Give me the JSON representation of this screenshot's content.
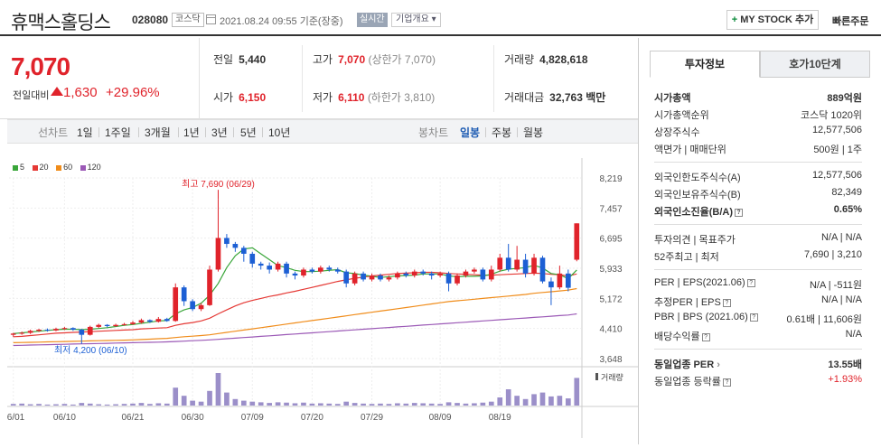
{
  "header": {
    "name": "휴맥스홀딩스",
    "code": "028080",
    "market": "코스닥",
    "datetime": "2021.08.24 09:55 기준(장중)",
    "realtime": "실시간",
    "overview": "기업개요 ▾",
    "mystock": "MY STOCK 추가",
    "quick_order": "빠른주문"
  },
  "summary": {
    "price": "7,070",
    "change_label": "전일대비",
    "change": "1,630",
    "change_pct": "+29.96%",
    "prev_label": "전일",
    "prev": "5,440",
    "high_label": "고가",
    "high": "7,070",
    "high_sub": "(상한가 7,070)",
    "volume_label": "거래량",
    "volume": "4,828,618",
    "open_label": "시가",
    "open": "6,150",
    "low_label": "저가",
    "low": "6,110",
    "low_sub": "(하한가 3,810)",
    "amount_label": "거래대금",
    "amount": "32,763",
    "amount_unit": "백만"
  },
  "periods": {
    "label": "선차트",
    "items": [
      "1일",
      "1주일",
      "3개월",
      "1년",
      "3년",
      "5년",
      "10년"
    ],
    "candle_label": "봉차트",
    "candle_items": [
      "일봉",
      "주봉",
      "월봉"
    ],
    "active": "일봉"
  },
  "colors": {
    "up": "#e0232b",
    "down": "#1c5fd4",
    "ma5": "#3aa63a",
    "ma20": "#e53935",
    "ma60": "#f08c1a",
    "ma120": "#9b59b6"
  },
  "chart_data": {
    "type": "candlestick",
    "legend": [
      "5",
      "20",
      "60",
      "120"
    ],
    "y_ticks": [
      "8,219",
      "7,457",
      "6,695",
      "5,933",
      "5,172",
      "4,410",
      "3,648"
    ],
    "ylim": [
      3648,
      8219
    ],
    "x_ticks": [
      "06/01",
      "06/10",
      "06/21",
      "06/30",
      "07/09",
      "07/20",
      "07/29",
      "08/09",
      "08/19"
    ],
    "annotation_high": "최고 7,690 (06/29)",
    "annotation_low": "최저 4,200 (06/10)",
    "volume_label": "거래량",
    "candles": [
      [
        4250,
        4280,
        4200,
        4300
      ],
      [
        4280,
        4300,
        4250,
        4330
      ],
      [
        4300,
        4350,
        4270,
        4380
      ],
      [
        4350,
        4380,
        4320,
        4400
      ],
      [
        4380,
        4360,
        4330,
        4410
      ],
      [
        4360,
        4400,
        4340,
        4430
      ],
      [
        4400,
        4420,
        4370,
        4450
      ],
      [
        4420,
        4380,
        4350,
        4440
      ],
      [
        4380,
        4250,
        4200,
        4400
      ],
      [
        4250,
        4450,
        4230,
        4480
      ],
      [
        4450,
        4500,
        4420,
        4530
      ],
      [
        4500,
        4470,
        4440,
        4520
      ],
      [
        4470,
        4500,
        4450,
        4530
      ],
      [
        4500,
        4520,
        4480,
        4550
      ],
      [
        4520,
        4560,
        4500,
        4600
      ],
      [
        4560,
        4620,
        4530,
        4660
      ],
      [
        4620,
        4580,
        4550,
        4640
      ],
      [
        4580,
        4650,
        4560,
        4700
      ],
      [
        4650,
        4600,
        4580,
        4680
      ],
      [
        4600,
        5450,
        4580,
        5550
      ],
      [
        5450,
        5100,
        4980,
        5500
      ],
      [
        5100,
        4900,
        4850,
        5150
      ],
      [
        4900,
        5000,
        4850,
        5050
      ],
      [
        5000,
        5900,
        4980,
        6000
      ],
      [
        5900,
        6700,
        5850,
        7690
      ],
      [
        6700,
        6550,
        6450,
        6800
      ],
      [
        6550,
        6450,
        6350,
        6600
      ],
      [
        6450,
        6300,
        6100,
        6500
      ],
      [
        6300,
        6050,
        5950,
        6350
      ],
      [
        6050,
        6000,
        5900,
        6100
      ],
      [
        6000,
        5900,
        5800,
        6080
      ],
      [
        5900,
        6050,
        5850,
        6100
      ],
      [
        6050,
        5800,
        5700,
        6100
      ],
      [
        5800,
        5750,
        5650,
        5850
      ],
      [
        5750,
        5900,
        5700,
        5950
      ],
      [
        5900,
        5850,
        5800,
        5950
      ],
      [
        5850,
        5950,
        5800,
        6000
      ],
      [
        5950,
        5900,
        5850,
        6000
      ],
      [
        5900,
        5850,
        5800,
        5950
      ],
      [
        5850,
        5550,
        5450,
        5900
      ],
      [
        5550,
        5800,
        5500,
        5850
      ],
      [
        5800,
        5650,
        5600,
        5850
      ],
      [
        5650,
        5750,
        5600,
        5800
      ],
      [
        5750,
        5650,
        5600,
        5800
      ],
      [
        5650,
        5700,
        5600,
        5750
      ],
      [
        5700,
        5800,
        5650,
        5850
      ],
      [
        5800,
        5750,
        5700,
        5850
      ],
      [
        5750,
        5850,
        5700,
        5900
      ],
      [
        5850,
        5800,
        5750,
        5900
      ],
      [
        5800,
        5750,
        5650,
        5850
      ],
      [
        5750,
        5800,
        5700,
        5850
      ],
      [
        5800,
        5550,
        5350,
        5850
      ],
      [
        5550,
        5750,
        5500,
        5800
      ],
      [
        5750,
        5850,
        5700,
        5900
      ],
      [
        5850,
        5900,
        5800,
        5950
      ],
      [
        5900,
        5650,
        5600,
        5950
      ],
      [
        5650,
        5900,
        5600,
        6000
      ],
      [
        5900,
        6200,
        5850,
        6300
      ],
      [
        6200,
        5900,
        5850,
        6550
      ],
      [
        5900,
        6150,
        5850,
        6500
      ],
      [
        6150,
        5800,
        5700,
        6300
      ],
      [
        5800,
        6200,
        5750,
        6300
      ],
      [
        6200,
        5600,
        5550,
        6250
      ],
      [
        5600,
        5450,
        5000,
        5700
      ],
      [
        5450,
        5800,
        5400,
        6000
      ],
      [
        5800,
        5440,
        5350,
        5900
      ],
      [
        6150,
        7070,
        6110,
        7070
      ]
    ],
    "ma5": [
      4280,
      4300,
      4320,
      4340,
      4360,
      4380,
      4390,
      4390,
      4380,
      4390,
      4410,
      4430,
      4460,
      4490,
      4510,
      4540,
      4570,
      4600,
      4610,
      4780,
      4880,
      4940,
      5050,
      5250,
      5550,
      5950,
      6250,
      6420,
      6450,
      6300,
      6150,
      6000,
      5950,
      5880,
      5850,
      5850,
      5860,
      5880,
      5900,
      5820,
      5800,
      5760,
      5730,
      5700,
      5720,
      5740,
      5750,
      5760,
      5790,
      5790,
      5790,
      5740,
      5720,
      5730,
      5730,
      5740,
      5780,
      5860,
      5910,
      5930,
      5950,
      6010,
      5940,
      5800,
      5770,
      5670,
      5890
    ],
    "ma20": [
      4200,
      4210,
      4230,
      4250,
      4270,
      4290,
      4300,
      4310,
      4320,
      4330,
      4340,
      4350,
      4360,
      4370,
      4380,
      4400,
      4410,
      4420,
      4430,
      4490,
      4530,
      4560,
      4600,
      4670,
      4780,
      4880,
      4980,
      5060,
      5120,
      5170,
      5220,
      5260,
      5310,
      5350,
      5400,
      5450,
      5500,
      5550,
      5600,
      5640,
      5680,
      5710,
      5740,
      5760,
      5780,
      5800,
      5810,
      5820,
      5830,
      5830,
      5820,
      5800,
      5790,
      5780,
      5770,
      5760,
      5760,
      5770,
      5780,
      5790,
      5800,
      5810,
      5800,
      5780,
      5770,
      5740,
      5790
    ],
    "ma60": [
      4050,
      4055,
      4060,
      4065,
      4070,
      4075,
      4080,
      4085,
      4090,
      4095,
      4100,
      4105,
      4110,
      4115,
      4120,
      4130,
      4140,
      4150,
      4160,
      4180,
      4200,
      4215,
      4230,
      4250,
      4280,
      4310,
      4340,
      4370,
      4400,
      4430,
      4460,
      4490,
      4520,
      4550,
      4580,
      4610,
      4640,
      4670,
      4700,
      4730,
      4760,
      4790,
      4820,
      4850,
      4880,
      4910,
      4940,
      4970,
      5000,
      5030,
      5060,
      5090,
      5110,
      5130,
      5150,
      5170,
      5190,
      5210,
      5230,
      5250,
      5270,
      5300,
      5320,
      5340,
      5360,
      5380,
      5420
    ],
    "ma120": [
      3980,
      3985,
      3990,
      3995,
      4000,
      4005,
      4010,
      4015,
      4020,
      4025,
      4030,
      4035,
      4040,
      4045,
      4050,
      4055,
      4060,
      4065,
      4070,
      4080,
      4090,
      4100,
      4110,
      4120,
      4135,
      4150,
      4165,
      4180,
      4195,
      4210,
      4225,
      4240,
      4255,
      4270,
      4285,
      4300,
      4315,
      4330,
      4345,
      4360,
      4375,
      4390,
      4405,
      4420,
      4435,
      4450,
      4465,
      4480,
      4495,
      4510,
      4525,
      4540,
      4555,
      4570,
      4585,
      4600,
      4615,
      4630,
      4645,
      4660,
      4675,
      4690,
      4705,
      4720,
      4735,
      4750,
      4780
    ],
    "volumes": [
      5,
      6,
      4,
      5,
      3,
      4,
      5,
      3,
      8,
      6,
      4,
      3,
      4,
      5,
      6,
      8,
      5,
      7,
      6,
      55,
      30,
      15,
      12,
      45,
      100,
      40,
      20,
      15,
      12,
      10,
      8,
      10,
      9,
      7,
      9,
      6,
      7,
      6,
      5,
      12,
      8,
      6,
      5,
      6,
      5,
      7,
      6,
      8,
      7,
      6,
      5,
      10,
      8,
      6,
      7,
      9,
      12,
      25,
      50,
      30,
      20,
      35,
      40,
      28,
      30,
      22,
      85
    ]
  },
  "info_tabs": [
    "투자정보",
    "호가10단계"
  ],
  "info": {
    "market_cap": {
      "k": "시가총액",
      "v": "889억원"
    },
    "market_cap_rank": {
      "k": "시가총액순위",
      "v": "코스닥 1020위"
    },
    "listed_shares": {
      "k": "상장주식수",
      "v": "12,577,506"
    },
    "par_unit": {
      "k": "액면가 | 매매단위",
      "v": "500원 | 1주"
    },
    "foreign_limit": {
      "k": "외국인한도주식수(A)",
      "v": "12,577,506"
    },
    "foreign_hold": {
      "k": "외국인보유주식수(B)",
      "v": "82,349"
    },
    "foreign_ratio": {
      "k": "외국인소진율(B/A)",
      "v": "0.65%"
    },
    "opinion": {
      "k": "투자의견 | 목표주가",
      "v": "N/A | N/A"
    },
    "week52": {
      "k": "52주최고 | 최저",
      "v": "7,690 | 3,210"
    },
    "per_eps": {
      "k": "PER | EPS(2021.06)",
      "v": "N/A | -511원"
    },
    "est_per_eps": {
      "k": "추정PER | EPS",
      "v": "N/A | N/A"
    },
    "pbr_bps": {
      "k": "PBR | BPS (2021.06)",
      "v": "0.61배 | 11,606원"
    },
    "dividend": {
      "k": "배당수익률",
      "v": "N/A"
    },
    "industry_per": {
      "k": "동일업종 PER",
      "v": "13.55배"
    },
    "industry_rate": {
      "k": "동일업종 등락률",
      "v": "+1.93%"
    }
  }
}
